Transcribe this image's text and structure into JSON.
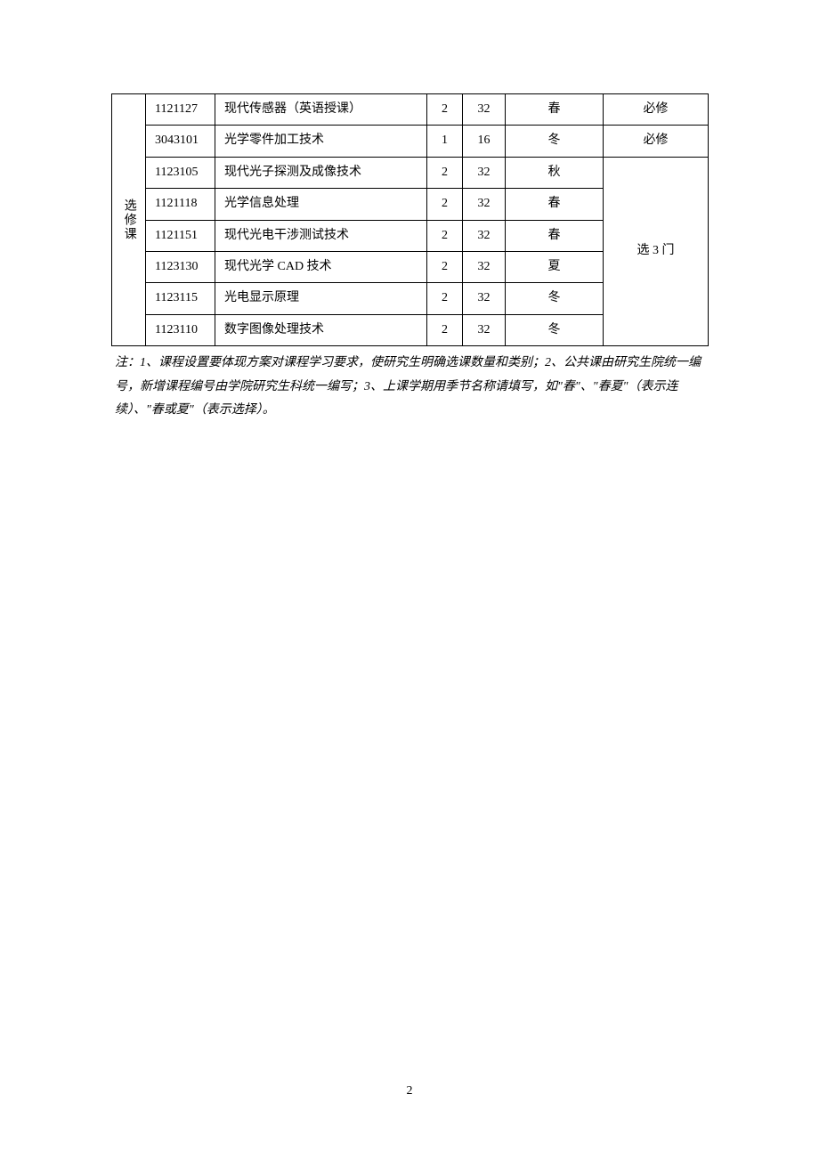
{
  "table": {
    "category_label": "选修课",
    "rows": [
      {
        "code": "1121127",
        "name": "现代传感器（英语授课）",
        "credit": "2",
        "hours": "32",
        "semester": "春",
        "req": "必修"
      },
      {
        "code": "3043101",
        "name": "光学零件加工技术",
        "credit": "1",
        "hours": "16",
        "semester": "冬",
        "req": "必修"
      },
      {
        "code": "1123105",
        "name": "现代光子探测及成像技术",
        "credit": "2",
        "hours": "32",
        "semester": "秋"
      },
      {
        "code": "1121118",
        "name": "光学信息处理",
        "credit": "2",
        "hours": "32",
        "semester": "春"
      },
      {
        "code": "1121151",
        "name": "现代光电干涉测试技术",
        "credit": "2",
        "hours": "32",
        "semester": "春"
      },
      {
        "code": "1123130",
        "name": "现代光学 CAD 技术",
        "credit": "2",
        "hours": "32",
        "semester": "夏"
      },
      {
        "code": "1123115",
        "name": "光电显示原理",
        "credit": "2",
        "hours": "32",
        "semester": "冬"
      },
      {
        "code": "1123110",
        "name": "数字图像处理技术",
        "credit": "2",
        "hours": "32",
        "semester": "冬"
      }
    ],
    "group_req": "选 3 门"
  },
  "note": "注：1、课程设置要体现方案对课程学习要求，使研究生明确选课数量和类别；2、公共课由研究生院统一编号，新增课程编号由学院研究生科统一编写；3、上课学期用季节名称请填写，如\"春\"、\"春夏\"（表示连续）、\"春或夏\"（表示选择）。",
  "page_number": "2"
}
